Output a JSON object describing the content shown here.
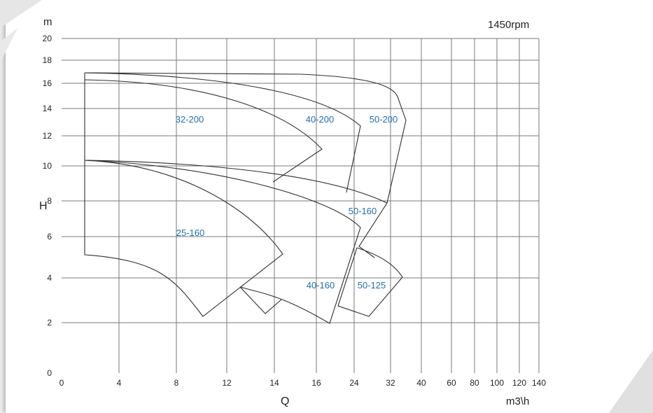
{
  "chart_data": {
    "type": "pump-coverage-chart",
    "title": "",
    "speed_label": "1450rpm",
    "ylabel": "H",
    "y_unit": "m",
    "xlabel": "Q",
    "x_unit": "m3\\h",
    "x_ticks": [
      "0",
      "4",
      "8",
      "12",
      "14",
      "16",
      "24",
      "32",
      "40",
      "60",
      "80",
      "100",
      "120",
      "140"
    ],
    "y_ticks": [
      "0",
      "2",
      "4",
      "6",
      "8",
      "10",
      "12",
      "14",
      "16",
      "18",
      "20"
    ],
    "grid": true,
    "regions": [
      {
        "label": "32-200"
      },
      {
        "label": "40-200"
      },
      {
        "label": "50-200"
      },
      {
        "label": "50-160"
      },
      {
        "label": "25-160"
      },
      {
        "label": "40-160"
      },
      {
        "label": "50-125"
      }
    ]
  }
}
